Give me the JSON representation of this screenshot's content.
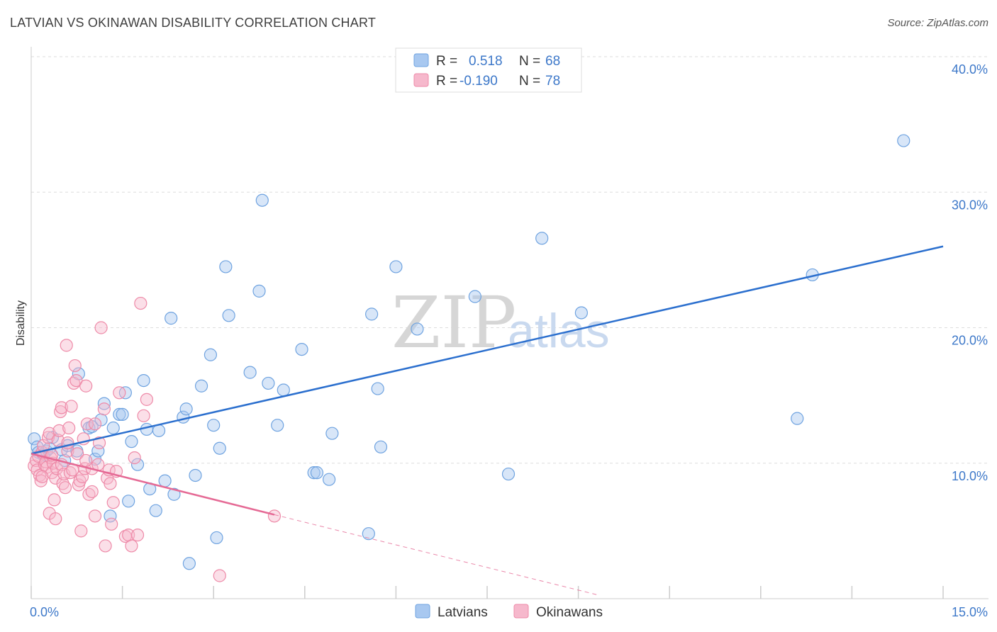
{
  "header": {
    "title": "LATVIAN VS OKINAWAN DISABILITY CORRELATION CHART",
    "source": "Source: ZipAtlas.com"
  },
  "watermark": {
    "zip": "ZIP",
    "atlas": "atlas"
  },
  "legend": {
    "rows": [
      {
        "r_label": "R =",
        "r_value": "0.518",
        "n_label": "N =",
        "n_value": "68",
        "color": "#a8c8f0"
      },
      {
        "r_label": "R =",
        "r_value": "-0.190",
        "n_label": "N =",
        "n_value": "78",
        "color": "#f6b8cc"
      }
    ]
  },
  "bottom_legend": {
    "items": [
      {
        "label": "Latvians",
        "color": "#a8c8f0"
      },
      {
        "label": "Okinawans",
        "color": "#f6b8cc"
      }
    ]
  },
  "chart_data": {
    "type": "scatter",
    "title": "LATVIAN VS OKINAWAN DISABILITY CORRELATION CHART",
    "xlabel": "",
    "ylabel": "Disability",
    "xlim": [
      0,
      15
    ],
    "ylim": [
      0,
      40
    ],
    "x_tick_labels": [
      "0.0%",
      "15.0%"
    ],
    "y_ticks": [
      10,
      20,
      30,
      40
    ],
    "y_tick_labels": [
      "10.0%",
      "20.0%",
      "30.0%",
      "40.0%"
    ],
    "grid": true,
    "legend_position": "top-center",
    "series": [
      {
        "name": "Latvians",
        "color": "#6fa3e0",
        "fill": "#a8c8f0",
        "trend": {
          "x0": 0.0,
          "y0": 10.7,
          "x1": 15.0,
          "y1": 26.0,
          "style": "solid",
          "color": "#2b6fce"
        },
        "points": [
          [
            0.05,
            11.8
          ],
          [
            0.1,
            11.2
          ],
          [
            0.12,
            10.8
          ],
          [
            0.2,
            10.6
          ],
          [
            0.25,
            10.9
          ],
          [
            0.3,
            11.1
          ],
          [
            0.35,
            11.9
          ],
          [
            0.5,
            11.0
          ],
          [
            0.55,
            10.2
          ],
          [
            0.6,
            11.3
          ],
          [
            0.75,
            10.9
          ],
          [
            0.78,
            16.6
          ],
          [
            0.95,
            12.6
          ],
          [
            1.0,
            12.7
          ],
          [
            1.05,
            10.3
          ],
          [
            1.1,
            10.9
          ],
          [
            1.15,
            13.2
          ],
          [
            1.2,
            14.4
          ],
          [
            1.3,
            6.1
          ],
          [
            1.35,
            12.6
          ],
          [
            1.45,
            13.6
          ],
          [
            1.5,
            13.6
          ],
          [
            1.55,
            15.2
          ],
          [
            1.6,
            7.2
          ],
          [
            1.65,
            11.6
          ],
          [
            1.75,
            9.9
          ],
          [
            1.85,
            16.1
          ],
          [
            1.9,
            12.5
          ],
          [
            1.95,
            8.1
          ],
          [
            2.05,
            6.5
          ],
          [
            2.1,
            12.4
          ],
          [
            2.2,
            8.7
          ],
          [
            2.3,
            20.7
          ],
          [
            2.35,
            7.7
          ],
          [
            2.5,
            13.4
          ],
          [
            2.55,
            14.0
          ],
          [
            2.6,
            2.6
          ],
          [
            2.7,
            9.1
          ],
          [
            2.8,
            15.7
          ],
          [
            2.95,
            18.0
          ],
          [
            3.0,
            12.8
          ],
          [
            3.05,
            4.5
          ],
          [
            3.1,
            11.1
          ],
          [
            3.2,
            24.5
          ],
          [
            3.25,
            20.9
          ],
          [
            3.6,
            16.7
          ],
          [
            3.75,
            22.7
          ],
          [
            3.8,
            29.4
          ],
          [
            3.9,
            15.9
          ],
          [
            4.05,
            12.8
          ],
          [
            4.15,
            15.4
          ],
          [
            4.45,
            18.4
          ],
          [
            4.65,
            9.3
          ],
          [
            4.7,
            9.3
          ],
          [
            4.9,
            8.8
          ],
          [
            4.95,
            12.2
          ],
          [
            5.55,
            4.8
          ],
          [
            5.6,
            21.0
          ],
          [
            5.7,
            15.5
          ],
          [
            5.75,
            11.2
          ],
          [
            6.0,
            24.5
          ],
          [
            6.35,
            19.9
          ],
          [
            7.3,
            22.3
          ],
          [
            7.85,
            9.2
          ],
          [
            8.4,
            26.6
          ],
          [
            9.05,
            21.1
          ],
          [
            12.6,
            13.3
          ],
          [
            12.85,
            23.9
          ],
          [
            14.35,
            33.8
          ]
        ]
      },
      {
        "name": "Okinawans",
        "color": "#ee8aa8",
        "fill": "#f6b8cc",
        "trend": {
          "x0": 0.0,
          "y0": 10.7,
          "x1": 4.0,
          "y1": 6.2,
          "style": "solid",
          "color": "#e56a95",
          "dash_to": {
            "x": 9.3,
            "y": 0.3
          }
        },
        "points": [
          [
            0.05,
            9.8
          ],
          [
            0.08,
            10.2
          ],
          [
            0.1,
            9.5
          ],
          [
            0.12,
            10.5
          ],
          [
            0.14,
            9.1
          ],
          [
            0.16,
            8.7
          ],
          [
            0.18,
            10.8
          ],
          [
            0.2,
            11.3
          ],
          [
            0.22,
            9.9
          ],
          [
            0.24,
            10.1
          ],
          [
            0.26,
            9.7
          ],
          [
            0.28,
            11.9
          ],
          [
            0.3,
            12.2
          ],
          [
            0.3,
            6.3
          ],
          [
            0.32,
            10.4
          ],
          [
            0.34,
            9.3
          ],
          [
            0.36,
            10.0
          ],
          [
            0.38,
            7.3
          ],
          [
            0.4,
            8.9
          ],
          [
            0.4,
            5.9
          ],
          [
            0.42,
            9.6
          ],
          [
            0.44,
            11.7
          ],
          [
            0.46,
            12.4
          ],
          [
            0.48,
            13.8
          ],
          [
            0.5,
            14.1
          ],
          [
            0.5,
            9.9
          ],
          [
            0.52,
            8.5
          ],
          [
            0.54,
            9.2
          ],
          [
            0.56,
            8.2
          ],
          [
            0.58,
            18.7
          ],
          [
            0.6,
            10.9
          ],
          [
            0.62,
            12.6
          ],
          [
            0.64,
            9.3
          ],
          [
            0.66,
            14.2
          ],
          [
            0.68,
            9.5
          ],
          [
            0.7,
            15.9
          ],
          [
            0.72,
            17.2
          ],
          [
            0.74,
            16.1
          ],
          [
            0.76,
            10.7
          ],
          [
            0.78,
            8.4
          ],
          [
            0.8,
            8.7
          ],
          [
            0.82,
            5.0
          ],
          [
            0.84,
            9.0
          ],
          [
            0.86,
            11.8
          ],
          [
            0.88,
            9.6
          ],
          [
            0.9,
            15.7
          ],
          [
            0.92,
            12.9
          ],
          [
            0.95,
            7.7
          ],
          [
            1.0,
            7.9
          ],
          [
            1.0,
            9.6
          ],
          [
            1.05,
            12.9
          ],
          [
            1.05,
            6.1
          ],
          [
            1.1,
            9.9
          ],
          [
            1.12,
            11.5
          ],
          [
            1.15,
            20.0
          ],
          [
            1.2,
            14.0
          ],
          [
            1.22,
            3.9
          ],
          [
            1.25,
            8.9
          ],
          [
            1.28,
            9.5
          ],
          [
            1.3,
            8.5
          ],
          [
            1.32,
            5.5
          ],
          [
            1.35,
            7.1
          ],
          [
            1.4,
            9.4
          ],
          [
            1.45,
            15.2
          ],
          [
            1.55,
            4.6
          ],
          [
            1.6,
            4.7
          ],
          [
            1.65,
            3.9
          ],
          [
            1.7,
            10.4
          ],
          [
            1.75,
            4.7
          ],
          [
            1.8,
            21.8
          ],
          [
            1.85,
            13.5
          ],
          [
            1.9,
            14.7
          ],
          [
            3.1,
            1.7
          ],
          [
            4.0,
            6.1
          ],
          [
            0.18,
            9.0
          ],
          [
            0.34,
            10.6
          ],
          [
            0.6,
            11.5
          ],
          [
            0.9,
            10.2
          ]
        ]
      }
    ]
  }
}
